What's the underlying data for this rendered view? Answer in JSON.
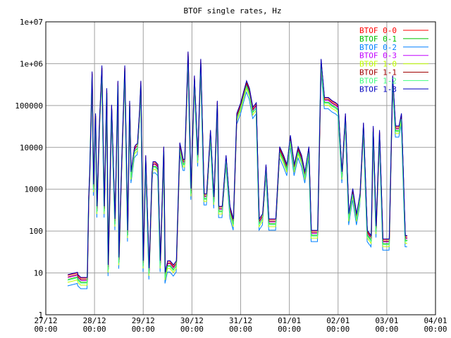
{
  "chart_data": {
    "type": "line",
    "title": "BTOF single rates, Hz",
    "xlabel": "",
    "ylabel": "",
    "y_scale": "log",
    "ylim": [
      1,
      10000000
    ],
    "y_ticks": [
      {
        "value": 1,
        "label": "1"
      },
      {
        "value": 10,
        "label": "10"
      },
      {
        "value": 100,
        "label": "100"
      },
      {
        "value": 1000,
        "label": "1000"
      },
      {
        "value": 10000,
        "label": "10000"
      },
      {
        "value": 100000,
        "label": "100000"
      },
      {
        "value": 1000000,
        "label": "1e+06"
      },
      {
        "value": 10000000,
        "label": "1e+07"
      }
    ],
    "xlim": [
      "27/12 00:00",
      "04/01 00:00"
    ],
    "x_ticks": [
      {
        "value": "27/12 00:00",
        "line1": "27/12",
        "line2": "00:00"
      },
      {
        "value": "28/12 00:00",
        "line1": "28/12",
        "line2": "00:00"
      },
      {
        "value": "29/12 00:00",
        "line1": "29/12",
        "line2": "00:00"
      },
      {
        "value": "30/12 00:00",
        "line1": "30/12",
        "line2": "00:00"
      },
      {
        "value": "31/12 00:00",
        "line1": "31/12",
        "line2": "00:00"
      },
      {
        "value": "01/01 00:00",
        "line1": "01/01",
        "line2": "00:00"
      },
      {
        "value": "02/01 00:00",
        "line1": "02/01",
        "line2": "00:00"
      },
      {
        "value": "03/01 00:00",
        "line1": "03/01",
        "line2": "00:00"
      },
      {
        "value": "04/01 00:00",
        "line1": "04/01",
        "line2": "00:00"
      }
    ],
    "grid": true,
    "legend_position": "top-right",
    "base_x_days": [
      0.45,
      0.65,
      0.66,
      0.72,
      0.75,
      0.78,
      0.8,
      0.85,
      0.88,
      0.9,
      0.95,
      0.98,
      1.02,
      1.05,
      1.1,
      1.15,
      1.2,
      1.25,
      1.28,
      1.35,
      1.42,
      1.48,
      1.5,
      1.55,
      1.62,
      1.68,
      1.72,
      1.75,
      1.82,
      1.85,
      1.88,
      1.92,
      1.95,
      2.0,
      2.05,
      2.12,
      2.18,
      2.2,
      2.25,
      2.3,
      2.35,
      2.42,
      2.45,
      2.5,
      2.55,
      2.62,
      2.68,
      2.75,
      2.82,
      2.85,
      2.92,
      2.98,
      3.05,
      3.12,
      3.18,
      3.25,
      3.3,
      3.38,
      3.45,
      3.52,
      3.55,
      3.62,
      3.7,
      3.78,
      3.85,
      3.92,
      4.0,
      4.05,
      4.12,
      4.18,
      4.25,
      4.32,
      4.38,
      4.45,
      4.52,
      4.58,
      4.65,
      4.72,
      4.8,
      4.88,
      4.95,
      5.02,
      5.1,
      5.18,
      5.25,
      5.32,
      5.4,
      5.45,
      5.52,
      5.58,
      5.65,
      5.72,
      5.8,
      5.88,
      5.95,
      6.0,
      6.08,
      6.15,
      6.22,
      6.3,
      6.38,
      6.45,
      6.52,
      6.6,
      6.68,
      6.72,
      6.78,
      6.85,
      6.92,
      7.0,
      7.05,
      7.12,
      7.18,
      7.25,
      7.3,
      7.38,
      7.42
    ],
    "base_y": [
      7,
      8,
      7,
      6,
      6,
      6,
      6,
      6,
      500,
      2000,
      500000,
      1000,
      50000,
      300,
      30000,
      700000,
      300,
      200000,
      12,
      80000,
      150,
      300000,
      18,
      2000,
      700000,
      80,
      100000,
      2000,
      8000,
      9000,
      9500,
      50000,
      300000,
      15,
      5000,
      10,
      2000,
      3500,
      3500,
      3000,
      15,
      8000,
      8,
      15,
      15,
      12,
      15,
      10000,
      4000,
      4000,
      1500000,
      800,
      400000,
      5000,
      1000000,
      600,
      600,
      20000,
      500,
      100000,
      300,
      300,
      5000,
      300,
      150,
      50000,
      90000,
      150000,
      300000,
      200000,
      70000,
      90000,
      150,
      200,
      3000,
      150,
      150,
      150,
      8000,
      5000,
      3000,
      15000,
      3000,
      8000,
      5000,
      2000,
      8000,
      80,
      80,
      80,
      1000000,
      120000,
      120000,
      100000,
      90000,
      80000,
      2000,
      50000,
      200,
      800,
      200,
      600,
      30000,
      80,
      60,
      25000,
      100,
      20000,
      50,
      50,
      50,
      400000,
      25000,
      25000,
      50000,
      60,
      60
    ],
    "series": [
      {
        "name": "BTOF 0-0",
        "color": "#ff0000",
        "scale": 1.25,
        "shift_days": 0.0
      },
      {
        "name": "BTOF 0-1",
        "color": "#00c000",
        "scale": 1.0,
        "shift_days": 0.004
      },
      {
        "name": "BTOF 0-2",
        "color": "#0080ff",
        "scale": 0.7,
        "shift_days": -0.003
      },
      {
        "name": "BTOF 0-3",
        "color": "#c000ff",
        "scale": 1.1,
        "shift_days": 0.002
      },
      {
        "name": "BTOF 1-0",
        "color": "#c0ff00",
        "scale": 0.85,
        "shift_days": -0.002
      },
      {
        "name": "BTOF 1-1",
        "color": "#a00000",
        "scale": 1.15,
        "shift_days": 0.003
      },
      {
        "name": "BTOF 1-2",
        "color": "#40ff80",
        "scale": 0.95,
        "shift_days": -0.004
      },
      {
        "name": "BTOF 1-3",
        "color": "#0000c0",
        "scale": 1.3,
        "shift_days": 0.001
      }
    ]
  }
}
